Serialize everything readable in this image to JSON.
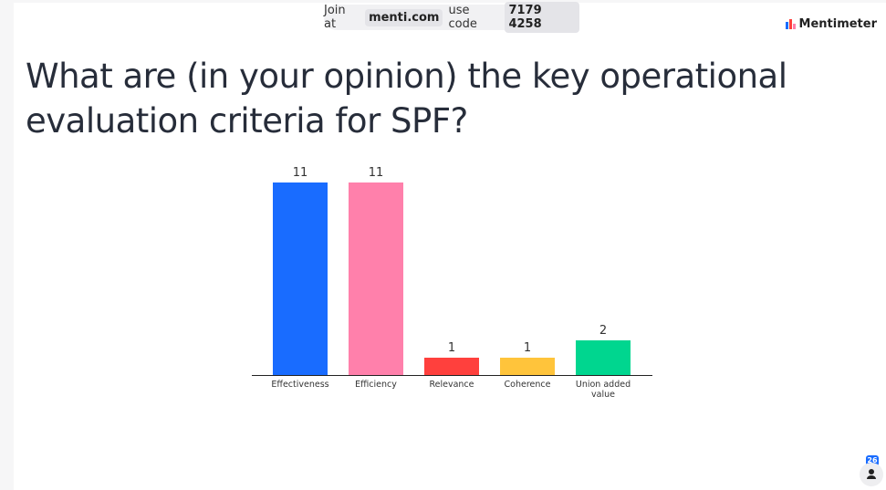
{
  "header": {
    "join_prefix": "Join at",
    "join_url": "menti.com",
    "code_prefix": "use code",
    "code": "7179 4258",
    "brand": "Mentimeter"
  },
  "chart_data": {
    "type": "bar",
    "title": "What are (in your opinion) the key operational evaluation criteria for SPF?",
    "categories": [
      "Effectiveness",
      "Efficiency",
      "Relevance",
      "Coherence",
      "Union added value"
    ],
    "values": [
      11,
      11,
      1,
      1,
      2
    ],
    "colors": [
      "#196cff",
      "#ff80ab",
      "#ff403d",
      "#ffc43b",
      "#00d68f"
    ]
  },
  "participants": 26
}
